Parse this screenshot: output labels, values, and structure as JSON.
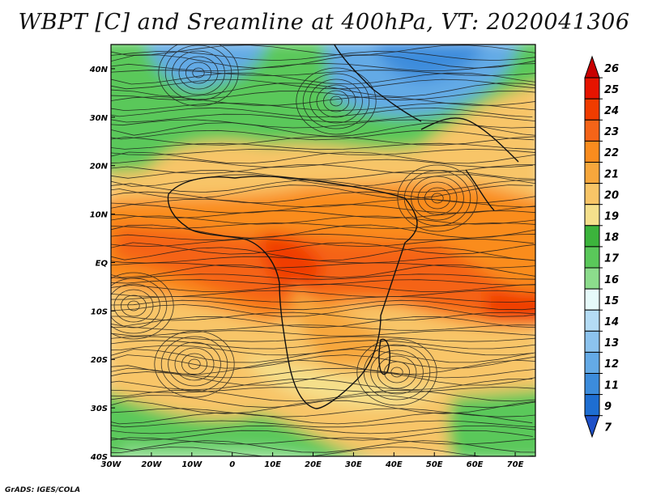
{
  "title": "WBPT [C] and Sreamline at 400hPa, VT: 2020041306",
  "credit": "GrADS: IGES/COLA",
  "map": {
    "lon_labels": [
      "30W",
      "20W",
      "10W",
      "0",
      "10E",
      "20E",
      "30E",
      "40E",
      "50E",
      "60E",
      "70E"
    ],
    "lat_labels": [
      "40N",
      "30N",
      "20N",
      "10N",
      "EQ",
      "10S",
      "20S",
      "30S",
      "40S"
    ],
    "lon_range": [
      -30,
      75
    ],
    "lat_range": [
      -40,
      45
    ]
  },
  "colorbar": {
    "levels": [
      "26",
      "25",
      "24",
      "23",
      "22",
      "21",
      "20",
      "19",
      "18",
      "17",
      "16",
      "15",
      "14",
      "13",
      "12",
      "11",
      "9",
      "7"
    ],
    "colors": [
      "#c80000",
      "#e61400",
      "#f03c00",
      "#f56418",
      "#fa8c1e",
      "#f7a73c",
      "#f8c567",
      "#f5e08c",
      "#3cb43c",
      "#5ac85a",
      "#8cdc8c",
      "#e6fafa",
      "#b4dcf5",
      "#8cc3ee",
      "#64aae6",
      "#3c8cdc",
      "#1e6ed2",
      "#1e50c8"
    ]
  }
}
